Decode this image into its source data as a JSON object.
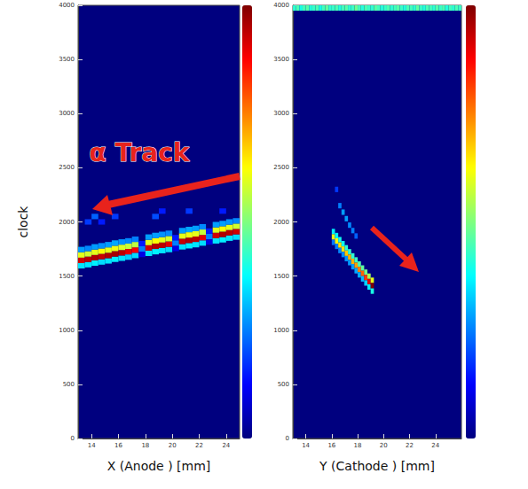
{
  "chart_data": [
    {
      "type": "heatmap",
      "x_label": "X (Anode ) [mm]",
      "y_label": "clock",
      "xlim": [
        13,
        25
      ],
      "xticks": [
        14,
        16,
        18,
        20,
        22,
        24
      ],
      "ylim": [
        0,
        4000
      ],
      "yticks": [
        0,
        500,
        1000,
        1500,
        2000,
        2500,
        3000,
        3500,
        4000
      ],
      "annotations": [
        {
          "text": "α Track"
        }
      ],
      "colorbar": {
        "range": [
          0,
          100
        ]
      },
      "cell_size": [
        0.5,
        50
      ],
      "cells": [
        [
          13.25,
          1595,
          35
        ],
        [
          13.25,
          1645,
          92
        ],
        [
          13.25,
          1695,
          60
        ],
        [
          13.25,
          1745,
          28
        ],
        [
          13.75,
          1605,
          35
        ],
        [
          13.75,
          1655,
          94
        ],
        [
          13.75,
          1705,
          58
        ],
        [
          13.75,
          1755,
          26
        ],
        [
          14.25,
          1620,
          36
        ],
        [
          14.25,
          1670,
          95
        ],
        [
          14.25,
          1720,
          60
        ],
        [
          14.25,
          1770,
          28
        ],
        [
          14.75,
          1630,
          34
        ],
        [
          14.75,
          1680,
          93
        ],
        [
          14.75,
          1730,
          62
        ],
        [
          14.75,
          1780,
          27
        ],
        [
          15.25,
          1640,
          35
        ],
        [
          15.25,
          1690,
          95
        ],
        [
          15.25,
          1740,
          60
        ],
        [
          15.25,
          1790,
          28
        ],
        [
          15.75,
          1655,
          36
        ],
        [
          15.75,
          1705,
          96
        ],
        [
          15.75,
          1755,
          61
        ],
        [
          15.75,
          1805,
          29
        ],
        [
          16.25,
          1665,
          35
        ],
        [
          16.25,
          1715,
          94
        ],
        [
          16.25,
          1765,
          59
        ],
        [
          16.25,
          1815,
          27
        ],
        [
          16.75,
          1675,
          33
        ],
        [
          16.75,
          1725,
          90
        ],
        [
          16.75,
          1775,
          57
        ],
        [
          16.75,
          1825,
          26
        ],
        [
          17.25,
          1690,
          34
        ],
        [
          17.25,
          1740,
          88
        ],
        [
          17.25,
          1790,
          56
        ],
        [
          17.25,
          1840,
          25
        ],
        [
          17.75,
          1700,
          10
        ],
        [
          17.75,
          1750,
          25
        ],
        [
          17.75,
          1800,
          15
        ],
        [
          18.25,
          1710,
          35
        ],
        [
          18.25,
          1760,
          92
        ],
        [
          18.25,
          1810,
          60
        ],
        [
          18.25,
          1860,
          28
        ],
        [
          18.75,
          1725,
          36
        ],
        [
          18.75,
          1775,
          95
        ],
        [
          18.75,
          1825,
          62
        ],
        [
          18.75,
          1875,
          28
        ],
        [
          19.25,
          1735,
          35
        ],
        [
          19.25,
          1785,
          94
        ],
        [
          19.25,
          1835,
          60
        ],
        [
          19.25,
          1885,
          27
        ],
        [
          19.75,
          1745,
          34
        ],
        [
          19.75,
          1795,
          90
        ],
        [
          19.75,
          1845,
          58
        ],
        [
          19.75,
          1895,
          26
        ],
        [
          20.25,
          1755,
          10
        ],
        [
          20.25,
          1805,
          25
        ],
        [
          20.25,
          1855,
          15
        ],
        [
          20.75,
          1770,
          35
        ],
        [
          20.75,
          1820,
          93
        ],
        [
          20.75,
          1870,
          60
        ],
        [
          20.75,
          1920,
          28
        ],
        [
          21.25,
          1780,
          36
        ],
        [
          21.25,
          1830,
          95
        ],
        [
          21.25,
          1880,
          61
        ],
        [
          21.25,
          1930,
          29
        ],
        [
          21.75,
          1790,
          35
        ],
        [
          21.75,
          1840,
          94
        ],
        [
          21.75,
          1890,
          60
        ],
        [
          21.75,
          1940,
          28
        ],
        [
          22.25,
          1805,
          34
        ],
        [
          22.25,
          1855,
          90
        ],
        [
          22.25,
          1905,
          57
        ],
        [
          22.25,
          1955,
          26
        ],
        [
          22.75,
          1815,
          10
        ],
        [
          22.75,
          1865,
          25
        ],
        [
          22.75,
          1915,
          15
        ],
        [
          23.25,
          1825,
          35
        ],
        [
          23.25,
          1875,
          92
        ],
        [
          23.25,
          1925,
          60
        ],
        [
          23.25,
          1975,
          28
        ],
        [
          23.75,
          1835,
          36
        ],
        [
          23.75,
          1885,
          95
        ],
        [
          23.75,
          1935,
          62
        ],
        [
          23.75,
          1985,
          28
        ],
        [
          24.25,
          1850,
          35
        ],
        [
          24.25,
          1900,
          94
        ],
        [
          24.25,
          1950,
          60
        ],
        [
          24.25,
          2000,
          27
        ],
        [
          24.75,
          1860,
          34
        ],
        [
          24.75,
          1910,
          92
        ],
        [
          24.75,
          1960,
          58
        ],
        [
          24.75,
          2010,
          26
        ],
        [
          13.75,
          2000,
          18
        ],
        [
          14.25,
          2050,
          22
        ],
        [
          14.75,
          2000,
          15
        ],
        [
          15.75,
          2050,
          18
        ],
        [
          18.75,
          2050,
          20
        ],
        [
          19.25,
          2100,
          15
        ],
        [
          21.25,
          2100,
          18
        ],
        [
          23.75,
          2100,
          15
        ]
      ]
    },
    {
      "type": "heatmap",
      "x_label": "Y (Cathode ) [mm]",
      "xlim": [
        13,
        26
      ],
      "xticks": [
        14,
        16,
        18,
        20,
        22,
        24
      ],
      "ylim": [
        0,
        4000
      ],
      "yticks": [
        0,
        500,
        1000,
        1500,
        2000,
        2500,
        3000,
        3500,
        4000
      ],
      "colorbar": {
        "range": [
          0,
          100
        ]
      },
      "cell_size": [
        0.25,
        50
      ],
      "cells": [
        [
          16.125,
          1911,
          36
        ],
        [
          16.125,
          1861,
          60
        ],
        [
          16.125,
          1811,
          24
        ],
        [
          16.375,
          1874,
          37
        ],
        [
          16.375,
          1824,
          62
        ],
        [
          16.375,
          1774,
          25
        ],
        [
          16.625,
          1836,
          39
        ],
        [
          16.625,
          1786,
          65
        ],
        [
          16.625,
          1736,
          26
        ],
        [
          16.875,
          1799,
          39
        ],
        [
          16.875,
          1749,
          65
        ],
        [
          16.875,
          1699,
          26
        ],
        [
          17.125,
          1761,
          41
        ],
        [
          17.125,
          1711,
          68
        ],
        [
          17.125,
          1661,
          27
        ],
        [
          17.375,
          1724,
          42
        ],
        [
          17.375,
          1674,
          70
        ],
        [
          17.375,
          1624,
          28
        ],
        [
          17.625,
          1686,
          42
        ],
        [
          17.625,
          1636,
          70
        ],
        [
          17.625,
          1586,
          28
        ],
        [
          17.875,
          1649,
          43
        ],
        [
          17.875,
          1599,
          72
        ],
        [
          17.875,
          1549,
          29
        ],
        [
          18.125,
          1611,
          45
        ],
        [
          18.125,
          1561,
          75
        ],
        [
          18.125,
          1511,
          30
        ],
        [
          18.375,
          1574,
          47
        ],
        [
          18.375,
          1524,
          78
        ],
        [
          18.375,
          1474,
          31
        ],
        [
          18.625,
          1536,
          49
        ],
        [
          18.625,
          1486,
          82
        ],
        [
          18.625,
          1436,
          33
        ],
        [
          18.875,
          1499,
          54
        ],
        [
          18.875,
          1449,
          90
        ],
        [
          18.875,
          1399,
          36
        ],
        [
          19.125,
          1461,
          60
        ],
        [
          19.125,
          1411,
          100
        ],
        [
          19.125,
          1361,
          40
        ],
        [
          16.625,
          2150,
          25
        ],
        [
          16.875,
          2090,
          28
        ],
        [
          17.125,
          2030,
          28
        ],
        [
          17.375,
          1970,
          26
        ],
        [
          17.625,
          1920,
          25
        ],
        [
          17.875,
          1870,
          22
        ],
        [
          16.375,
          2300,
          18
        ],
        [
          13.125,
          3975,
          42
        ],
        [
          13.375,
          3975,
          45
        ],
        [
          13.625,
          3975,
          40
        ],
        [
          13.875,
          3975,
          44
        ],
        [
          14.125,
          3975,
          46
        ],
        [
          14.375,
          3975,
          41
        ],
        [
          14.625,
          3975,
          43
        ],
        [
          14.875,
          3975,
          45
        ],
        [
          15.125,
          3975,
          40
        ],
        [
          15.375,
          3975,
          44
        ],
        [
          15.625,
          3975,
          47
        ],
        [
          15.875,
          3975,
          42
        ],
        [
          16.125,
          3975,
          43
        ],
        [
          16.375,
          3975,
          45
        ],
        [
          16.625,
          3975,
          41
        ],
        [
          16.875,
          3975,
          44
        ],
        [
          17.125,
          3975,
          46
        ],
        [
          17.375,
          3975,
          42
        ],
        [
          17.625,
          3975,
          43
        ],
        [
          17.875,
          3975,
          48
        ],
        [
          18.125,
          3975,
          44
        ],
        [
          18.375,
          3975,
          41
        ],
        [
          18.625,
          3975,
          45
        ],
        [
          18.875,
          3975,
          43
        ],
        [
          19.125,
          3975,
          42
        ],
        [
          19.375,
          3975,
          46
        ],
        [
          19.625,
          3975,
          44
        ],
        [
          19.875,
          3975,
          41
        ],
        [
          20.125,
          3975,
          43
        ],
        [
          20.375,
          3975,
          45
        ],
        [
          20.625,
          3975,
          42
        ],
        [
          20.875,
          3975,
          44
        ],
        [
          21.125,
          3975,
          46
        ],
        [
          21.375,
          3975,
          43
        ],
        [
          21.625,
          3975,
          41
        ],
        [
          21.875,
          3975,
          45
        ],
        [
          22.125,
          3975,
          44
        ],
        [
          22.375,
          3975,
          42
        ],
        [
          22.625,
          3975,
          47
        ],
        [
          22.875,
          3975,
          43
        ],
        [
          23.125,
          3975,
          41
        ],
        [
          23.375,
          3975,
          45
        ],
        [
          23.625,
          3975,
          44
        ],
        [
          23.875,
          3975,
          42
        ],
        [
          24.125,
          3975,
          46
        ],
        [
          24.375,
          3975,
          43
        ],
        [
          24.625,
          3975,
          45
        ],
        [
          24.875,
          3975,
          41
        ],
        [
          25.125,
          3975,
          44
        ],
        [
          25.375,
          3975,
          42
        ],
        [
          25.625,
          3975,
          45
        ],
        [
          25.875,
          3975,
          43
        ]
      ]
    }
  ]
}
